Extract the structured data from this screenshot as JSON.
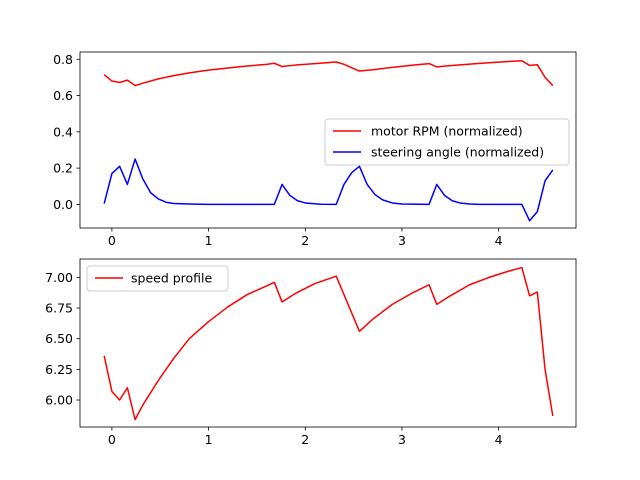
{
  "chart_data": [
    {
      "type": "line",
      "xlim": [
        -0.33,
        4.8
      ],
      "ylim": [
        -0.13,
        0.84
      ],
      "xticks": [
        0,
        1,
        2,
        3,
        4
      ],
      "xtick_labels": [
        "0",
        "1",
        "2",
        "3",
        "4"
      ],
      "yticks": [
        0.0,
        0.2,
        0.4,
        0.6,
        0.8
      ],
      "ytick_labels": [
        "0.0",
        "0.2",
        "0.4",
        "0.6",
        "0.8"
      ],
      "grid": false,
      "legend_position": "center-right",
      "series": [
        {
          "name": "motor RPM (normalized)",
          "color": "#ff0000",
          "points": [
            [
              -0.08,
              0.715
            ],
            [
              0.0,
              0.68
            ],
            [
              0.08,
              0.672
            ],
            [
              0.16,
              0.685
            ],
            [
              0.24,
              0.655
            ],
            [
              0.32,
              0.668
            ],
            [
              0.48,
              0.692
            ],
            [
              0.64,
              0.71
            ],
            [
              0.8,
              0.725
            ],
            [
              1.0,
              0.74
            ],
            [
              1.2,
              0.752
            ],
            [
              1.4,
              0.763
            ],
            [
              1.6,
              0.772
            ],
            [
              1.68,
              0.778
            ],
            [
              1.76,
              0.76
            ],
            [
              1.9,
              0.768
            ],
            [
              2.1,
              0.776
            ],
            [
              2.32,
              0.785
            ],
            [
              2.4,
              0.772
            ],
            [
              2.56,
              0.735
            ],
            [
              2.7,
              0.742
            ],
            [
              2.9,
              0.755
            ],
            [
              3.1,
              0.767
            ],
            [
              3.28,
              0.776
            ],
            [
              3.36,
              0.758
            ],
            [
              3.5,
              0.765
            ],
            [
              3.7,
              0.773
            ],
            [
              3.9,
              0.781
            ],
            [
              4.1,
              0.788
            ],
            [
              4.24,
              0.792
            ],
            [
              4.32,
              0.766
            ],
            [
              4.4,
              0.77
            ],
            [
              4.48,
              0.7
            ],
            [
              4.56,
              0.655
            ]
          ]
        },
        {
          "name": "steering angle (normalized)",
          "color": "#0000ff",
          "points": [
            [
              -0.08,
              0.005
            ],
            [
              0.0,
              0.17
            ],
            [
              0.08,
              0.21
            ],
            [
              0.16,
              0.11
            ],
            [
              0.24,
              0.25
            ],
            [
              0.32,
              0.14
            ],
            [
              0.4,
              0.065
            ],
            [
              0.48,
              0.03
            ],
            [
              0.56,
              0.012
            ],
            [
              0.64,
              0.005
            ],
            [
              0.8,
              0.002
            ],
            [
              1.0,
              0.0
            ],
            [
              1.68,
              0.0
            ],
            [
              1.76,
              0.11
            ],
            [
              1.84,
              0.05
            ],
            [
              1.92,
              0.02
            ],
            [
              2.0,
              0.008
            ],
            [
              2.16,
              0.001
            ],
            [
              2.32,
              0.0
            ],
            [
              2.4,
              0.11
            ],
            [
              2.48,
              0.175
            ],
            [
              2.56,
              0.21
            ],
            [
              2.64,
              0.11
            ],
            [
              2.72,
              0.055
            ],
            [
              2.8,
              0.025
            ],
            [
              2.9,
              0.008
            ],
            [
              3.0,
              0.002
            ],
            [
              3.28,
              0.0
            ],
            [
              3.36,
              0.11
            ],
            [
              3.44,
              0.05
            ],
            [
              3.52,
              0.02
            ],
            [
              3.6,
              0.008
            ],
            [
              3.7,
              0.002
            ],
            [
              3.8,
              0.0
            ],
            [
              4.24,
              0.0
            ],
            [
              4.32,
              -0.09
            ],
            [
              4.4,
              -0.04
            ],
            [
              4.48,
              0.13
            ],
            [
              4.56,
              0.19
            ]
          ]
        }
      ]
    },
    {
      "type": "line",
      "xlim": [
        -0.33,
        4.8
      ],
      "ylim": [
        5.78,
        7.15
      ],
      "xticks": [
        0,
        1,
        2,
        3,
        4
      ],
      "xtick_labels": [
        "0",
        "1",
        "2",
        "3",
        "4"
      ],
      "yticks": [
        6.0,
        6.25,
        6.5,
        6.75,
        7.0
      ],
      "ytick_labels": [
        "6.00",
        "6.25",
        "6.50",
        "6.75",
        "7.00"
      ],
      "grid": false,
      "legend_position": "upper-left",
      "series": [
        {
          "name": "speed profile",
          "color": "#ff0000",
          "points": [
            [
              -0.08,
              6.36
            ],
            [
              0.0,
              6.07
            ],
            [
              0.08,
              6.0
            ],
            [
              0.16,
              6.1
            ],
            [
              0.24,
              5.84
            ],
            [
              0.32,
              5.96
            ],
            [
              0.48,
              6.16
            ],
            [
              0.64,
              6.34
            ],
            [
              0.8,
              6.5
            ],
            [
              1.0,
              6.64
            ],
            [
              1.2,
              6.76
            ],
            [
              1.4,
              6.86
            ],
            [
              1.6,
              6.93
            ],
            [
              1.68,
              6.96
            ],
            [
              1.76,
              6.8
            ],
            [
              1.9,
              6.87
            ],
            [
              2.1,
              6.95
            ],
            [
              2.32,
              7.01
            ],
            [
              2.4,
              6.86
            ],
            [
              2.56,
              6.56
            ],
            [
              2.7,
              6.66
            ],
            [
              2.9,
              6.78
            ],
            [
              3.1,
              6.87
            ],
            [
              3.28,
              6.94
            ],
            [
              3.36,
              6.78
            ],
            [
              3.5,
              6.85
            ],
            [
              3.7,
              6.94
            ],
            [
              3.9,
              7.0
            ],
            [
              4.1,
              7.05
            ],
            [
              4.24,
              7.08
            ],
            [
              4.32,
              6.85
            ],
            [
              4.4,
              6.88
            ],
            [
              4.48,
              6.25
            ],
            [
              4.56,
              5.87
            ]
          ]
        }
      ]
    }
  ]
}
